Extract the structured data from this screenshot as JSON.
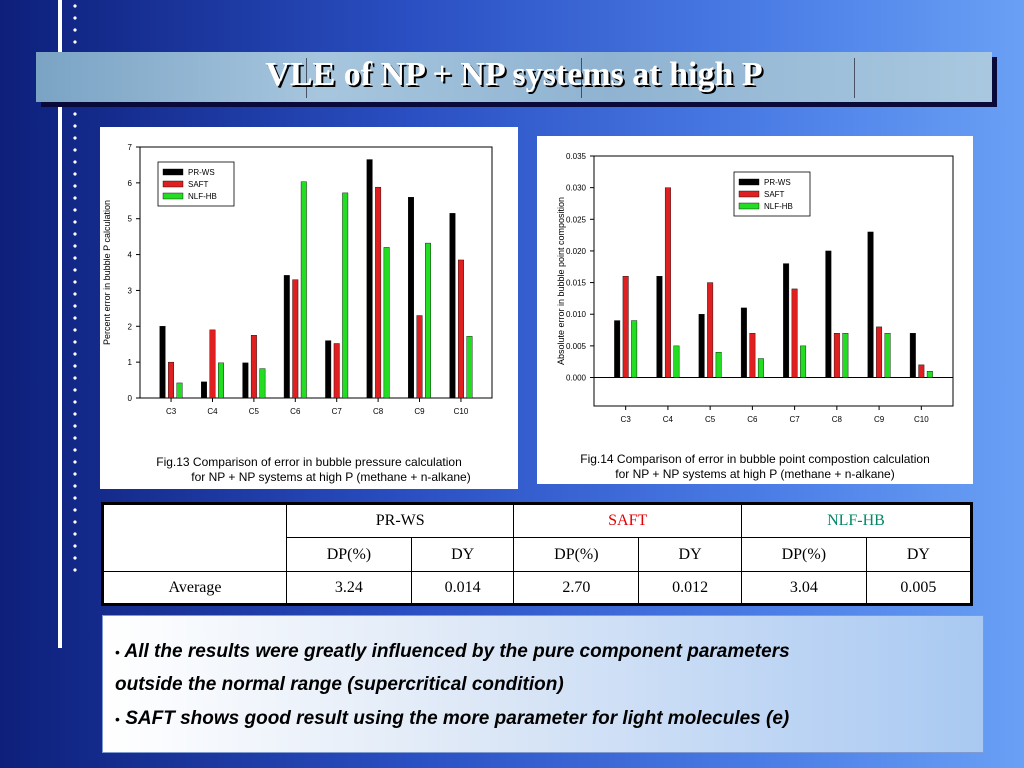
{
  "title": "VLE of NP + NP systems at high P",
  "chart_data": [
    {
      "type": "bar",
      "categories": [
        "C3",
        "C4",
        "C5",
        "C6",
        "C7",
        "C8",
        "C9",
        "C10"
      ],
      "series": [
        {
          "name": "PR-WS",
          "color": "#000000",
          "values": [
            2.0,
            0.45,
            0.98,
            3.42,
            1.6,
            6.65,
            5.6,
            5.15
          ]
        },
        {
          "name": "SAFT",
          "color": "#e02020",
          "values": [
            1.0,
            1.9,
            1.75,
            3.3,
            1.52,
            5.88,
            2.3,
            3.85
          ]
        },
        {
          "name": "NLF-HB",
          "color": "#22dd22",
          "values": [
            0.42,
            0.98,
            0.82,
            6.03,
            5.72,
            4.2,
            4.32,
            1.72
          ]
        }
      ],
      "ylabel": "Percent error in bubble P calculation",
      "ylim": [
        0,
        7
      ],
      "yticks": [
        "0",
        "1",
        "2",
        "3",
        "4",
        "5",
        "6",
        "7"
      ],
      "legend": "top-left",
      "caption": [
        "Fig.13 Comparison of error in bubble pressure calculation",
        "for NP + NP systems at high P (methane + n-alkane)"
      ]
    },
    {
      "type": "bar",
      "categories": [
        "C3",
        "C4",
        "C5",
        "C6",
        "C7",
        "C8",
        "C9",
        "C10"
      ],
      "series": [
        {
          "name": "PR-WS",
          "color": "#000000",
          "values": [
            0.009,
            0.016,
            0.01,
            0.011,
            0.018,
            0.02,
            0.023,
            0.007
          ]
        },
        {
          "name": "SAFT",
          "color": "#e02020",
          "values": [
            0.016,
            0.03,
            0.015,
            0.007,
            0.014,
            0.007,
            0.008,
            0.002
          ]
        },
        {
          "name": "NLF-HB",
          "color": "#22dd22",
          "values": [
            0.009,
            0.005,
            0.004,
            0.003,
            0.005,
            0.007,
            0.007,
            0.001
          ]
        }
      ],
      "ylabel": "Absolute error in bubble point composition",
      "ylim": [
        -0.0045,
        0.035
      ],
      "yticks": [
        "0.000",
        "0.005",
        "0.010",
        "0.015",
        "0.020",
        "0.025",
        "0.030",
        "0.035"
      ],
      "legend": "top-right",
      "caption": [
        "Fig.14 Comparison of error in bubble point compostion calculation",
        "for NP + NP systems at high P (methane + n-alkane)"
      ]
    }
  ],
  "table": {
    "headers": [
      {
        "label": "PR-WS",
        "color": "#000000"
      },
      {
        "label": "SAFT",
        "color": "#e00000"
      },
      {
        "label": "NLF-HB",
        "color": "#008866"
      }
    ],
    "subheaders": [
      "DP(%)",
      "DY",
      "DP(%)",
      "DY",
      "DP(%)",
      "DY"
    ],
    "row_label": "Average",
    "row_values": [
      "3.24",
      "0.014",
      "2.70",
      "0.012",
      "3.04",
      "0.005"
    ]
  },
  "bullets": {
    "line1": "All the results were greatly influenced by the pure component parameters",
    "line2": "outside the normal range (supercritical condition)",
    "line3": "SAFT shows good result using the more parameter for light molecules  (e)",
    "marker": "•"
  }
}
